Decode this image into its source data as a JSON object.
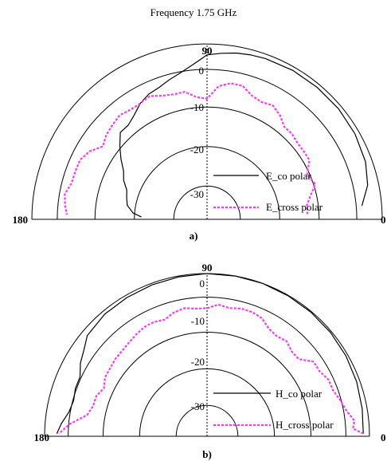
{
  "title": "Frequency 1.75 GHz",
  "chart_data": [
    {
      "type": "polar",
      "panel_label": "a)",
      "angle_labels": {
        "left": "180",
        "top": "90",
        "right": "0"
      },
      "radial_ticks": [
        "0",
        "-10",
        "-20",
        "-30"
      ],
      "rlim": [
        -40,
        0
      ],
      "legend": [
        {
          "name": "E_co polar",
          "style": "solid",
          "color": "#000000"
        },
        {
          "name": "E_cross polar",
          "style": "dotted",
          "color": "#ff33ff"
        }
      ],
      "series": [
        {
          "name": "E_co polar",
          "angles_deg": [
            5,
            12,
            20,
            30,
            40,
            50,
            60,
            70,
            75,
            80,
            85,
            90,
            95,
            100,
            105,
            110,
            115,
            120,
            125,
            130,
            135,
            140,
            145,
            150,
            155,
            160,
            165,
            170,
            175,
            178
          ],
          "values_db": [
            -4.5,
            -2.5,
            -1.5,
            -1,
            -0.8,
            -0.8,
            -0.8,
            -1,
            -1.2,
            -1.5,
            -2,
            -2.5,
            -4.5,
            -6,
            -7,
            -8,
            -8.5,
            -9.5,
            -11,
            -12,
            -12,
            -14,
            -16,
            -18,
            -19,
            -20.5,
            -21,
            -21.5,
            -23,
            -25
          ]
        },
        {
          "name": "E_cross polar",
          "angles_deg": [
            3,
            8,
            12,
            18,
            24,
            30,
            35,
            40,
            45,
            50,
            55,
            60,
            65,
            70,
            75,
            80,
            85,
            90,
            95,
            100,
            105,
            110,
            115,
            120,
            125,
            130,
            135,
            140,
            145,
            150,
            155,
            160,
            165,
            170,
            175,
            178
          ],
          "values_db": [
            -17,
            -17,
            -16,
            -14,
            -15,
            -13,
            -13,
            -13,
            -12.5,
            -12.5,
            -11,
            -10,
            -10.5,
            -10,
            -8.5,
            -8.5,
            -9.5,
            -12.5,
            -12,
            -10.5,
            -10.5,
            -10,
            -9,
            -9.5,
            -9.5,
            -9,
            -9.5,
            -10,
            -11,
            -9,
            -8,
            -8,
            -8,
            -7,
            -7.5,
            -8
          ]
        }
      ]
    },
    {
      "type": "polar",
      "panel_label": "b)",
      "angle_labels": {
        "left": "180",
        "top": "90",
        "right": "0"
      },
      "radial_ticks": [
        "0",
        "-10",
        "-20",
        "-30"
      ],
      "rlim": [
        -40,
        0
      ],
      "legend": [
        {
          "name": "H_co polar",
          "style": "solid",
          "color": "#000000"
        },
        {
          "name": "H_cross polar",
          "style": "dotted",
          "color": "#ff33ff"
        }
      ],
      "series": [
        {
          "name": "H_co polar",
          "angles_deg": [
            1,
            5,
            10,
            20,
            30,
            40,
            50,
            60,
            70,
            80,
            90,
            100,
            110,
            120,
            130,
            140,
            145,
            150,
            155,
            160,
            165,
            170,
            175,
            179
          ],
          "values_db": [
            -1.5,
            -1.5,
            -1.2,
            -0.8,
            -0.5,
            -0.3,
            -0.2,
            -0.1,
            0,
            0,
            0,
            -0.2,
            -0.4,
            -0.6,
            -0.8,
            -1.5,
            -3,
            -4,
            -5.5,
            -5.5,
            -6,
            -5.5,
            -4,
            -3
          ]
        },
        {
          "name": "H_cross polar",
          "angles_deg": [
            1,
            3,
            6,
            10,
            15,
            20,
            25,
            30,
            35,
            40,
            45,
            50,
            55,
            60,
            65,
            70,
            75,
            80,
            85,
            90,
            95,
            100,
            105,
            110,
            115,
            120,
            125,
            130,
            140,
            150,
            155,
            160,
            165,
            170,
            175,
            179
          ],
          "values_db": [
            -1.5,
            -4,
            -3.5,
            -5,
            -6,
            -7,
            -7,
            -8,
            -8,
            -10.5,
            -10.5,
            -9.5,
            -10,
            -9.5,
            -8,
            -7.5,
            -7.5,
            -8,
            -7.5,
            -8.5,
            -8.5,
            -8,
            -8.5,
            -9.5,
            -9,
            -9,
            -9.5,
            -10,
            -10.5,
            -11,
            -12,
            -11,
            -11,
            -10,
            -6,
            -3.5
          ]
        }
      ]
    }
  ]
}
